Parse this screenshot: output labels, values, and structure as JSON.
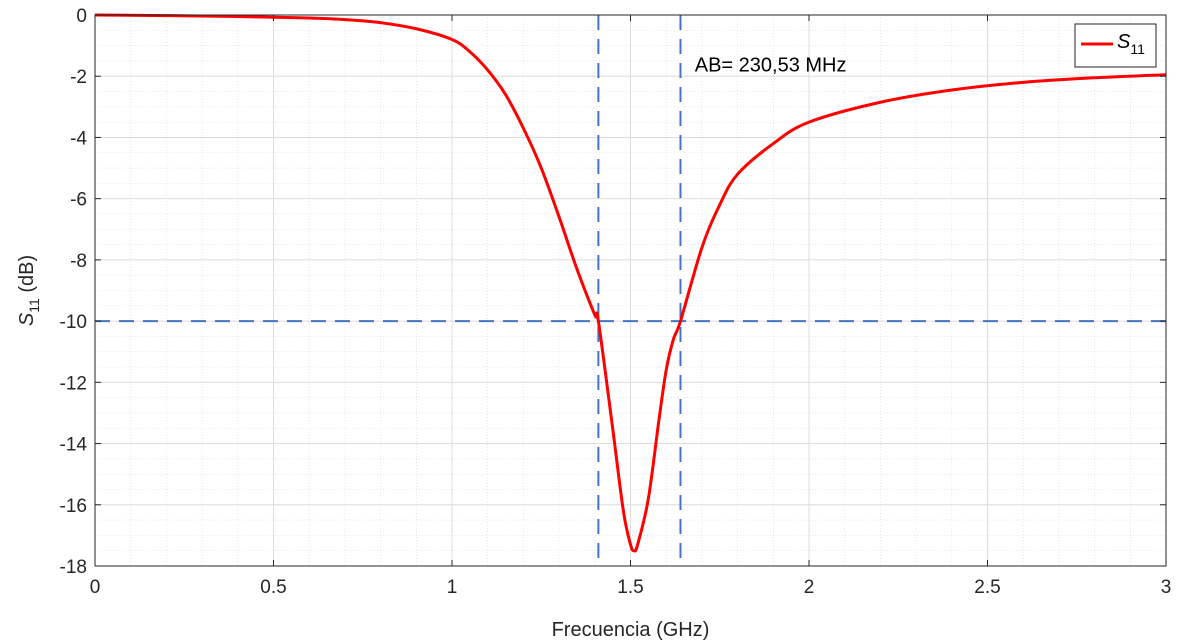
{
  "chart_data": {
    "type": "line",
    "xlabel": "Frecuencia (GHz)",
    "ylabel_main": "S",
    "ylabel_sub": "11",
    "ylabel_unit": " (dB)",
    "xlim": [
      0,
      3
    ],
    "ylim": [
      -18,
      0
    ],
    "x_ticks": [
      0,
      0.5,
      1,
      1.5,
      2,
      2.5,
      3
    ],
    "x_tick_labels": [
      "0",
      "0.5",
      "1",
      "1.5",
      "2",
      "2.5",
      "3"
    ],
    "y_ticks": [
      0,
      -2,
      -4,
      -6,
      -8,
      -10,
      -12,
      -14,
      -16,
      -18
    ],
    "y_tick_labels": [
      "0",
      "-2",
      "-4",
      "-6",
      "-8",
      "-10",
      "-12",
      "-14",
      "-16",
      "-18"
    ],
    "grid": true,
    "minor_grid": true,
    "legend_position": "top-right",
    "series": [
      {
        "name_main": "S",
        "name_sub": "11",
        "color": "#ff0000",
        "x": [
          0,
          0.2,
          0.4,
          0.6,
          0.7,
          0.8,
          0.9,
          1.0,
          1.05,
          1.1,
          1.15,
          1.2,
          1.25,
          1.3,
          1.35,
          1.4,
          1.41,
          1.45,
          1.48,
          1.5,
          1.51,
          1.52,
          1.55,
          1.58,
          1.6,
          1.62,
          1.64,
          1.7,
          1.75,
          1.8,
          1.9,
          2.0,
          2.2,
          2.4,
          2.6,
          2.8,
          3.0
        ],
        "y": [
          0,
          -0.02,
          -0.05,
          -0.1,
          -0.15,
          -0.25,
          -0.45,
          -0.8,
          -1.2,
          -1.8,
          -2.6,
          -3.7,
          -5.0,
          -6.6,
          -8.3,
          -9.8,
          -10.0,
          -13.5,
          -16.2,
          -17.3,
          -17.5,
          -17.3,
          -15.8,
          -13.2,
          -11.6,
          -10.6,
          -10.0,
          -7.6,
          -6.2,
          -5.2,
          -4.2,
          -3.5,
          -2.85,
          -2.45,
          -2.2,
          -2.05,
          -1.95
        ]
      }
    ],
    "reference_lines": [
      {
        "orientation": "horizontal",
        "value": -10,
        "color": "#4472c4"
      },
      {
        "orientation": "vertical",
        "value": 1.41,
        "color": "#4472c4"
      },
      {
        "orientation": "vertical",
        "value": 1.64,
        "color": "#4472c4"
      }
    ],
    "annotation": {
      "text": "AB= 230,53 MHz",
      "x": 1.68,
      "y": -1.85
    }
  }
}
